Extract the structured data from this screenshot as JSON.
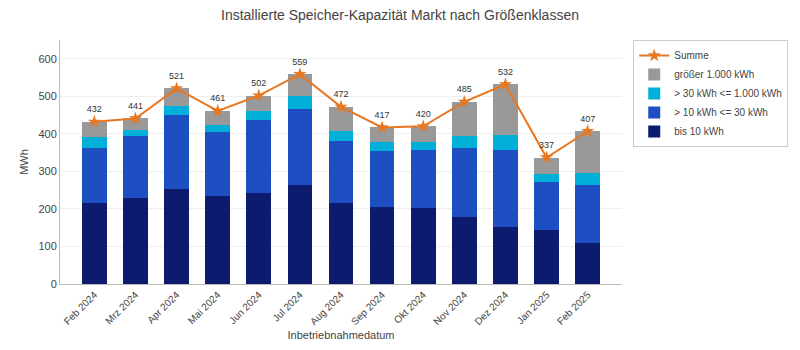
{
  "chart_data": {
    "type": "bar",
    "title": "Installierte Speicher-Kapazität Markt nach Größenklassen",
    "xlabel": "Inbetriebnahmedatum",
    "ylabel": "MWh",
    "categories": [
      "Feb 2024",
      "Mrz 2024",
      "Apr 2024",
      "Mai 2024",
      "Jun 2024",
      "Jul 2024",
      "Aug 2024",
      "Sep 2024",
      "Okt 2024",
      "Nov 2024",
      "Dez 2024",
      "Jan 2025",
      "Feb 2025"
    ],
    "stacked": true,
    "series": [
      {
        "name": "bis 10 kWh",
        "type": "bar",
        "color": "#0d1b6e",
        "values": [
          215,
          230,
          252,
          235,
          243,
          265,
          215,
          205,
          202,
          178,
          152,
          145,
          110
        ]
      },
      {
        "name": "> 10 kWh <= 30 kWh",
        "type": "bar",
        "color": "#1e4fc2",
        "values": [
          148,
          163,
          198,
          170,
          195,
          200,
          165,
          150,
          155,
          185,
          205,
          128,
          155
        ]
      },
      {
        "name": "> 30 kWh <= 1.000 kWh",
        "type": "bar",
        "color": "#00b0d8",
        "values": [
          28,
          18,
          25,
          18,
          22,
          35,
          28,
          22,
          22,
          32,
          40,
          20,
          30
        ]
      },
      {
        "name": "größer 1.000 kWh",
        "type": "bar",
        "color": "#999999",
        "values": [
          41,
          30,
          46,
          38,
          42,
          59,
          64,
          40,
          41,
          90,
          135,
          44,
          112
        ]
      },
      {
        "name": "Summe",
        "type": "line",
        "color": "#e87722",
        "marker": "star",
        "data_labels": true,
        "values": [
          432,
          441,
          521,
          461,
          502,
          559,
          472,
          417,
          420,
          485,
          532,
          337,
          407
        ]
      }
    ],
    "ylim": [
      0,
      650
    ],
    "yticks": [
      0,
      100,
      200,
      300,
      400,
      500,
      600
    ],
    "grid": true,
    "legend": "upper right"
  }
}
